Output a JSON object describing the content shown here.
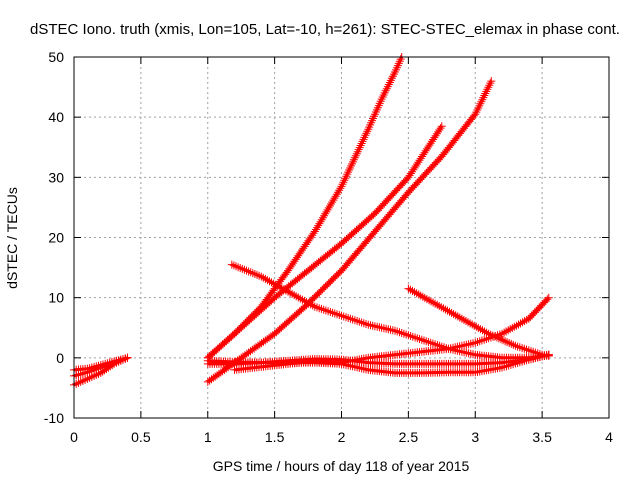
{
  "chart_data": {
    "type": "scatter",
    "title": "dSTEC Iono. truth (xmis, Lon=105, Lat=-10, h=261): STEC-STEC_elemax in phase cont.",
    "xlabel": "GPS time / hours of day 118 of year 2015",
    "ylabel": "dSTEC  / TECUs",
    "xlim": [
      0,
      4
    ],
    "ylim": [
      -10,
      50
    ],
    "xticks": [
      0,
      0.5,
      1,
      1.5,
      2,
      2.5,
      3,
      3.5,
      4
    ],
    "xtick_labels": [
      "0",
      "0.5",
      "1",
      "1.5",
      "2",
      "2.5",
      "3",
      "3.5",
      "4"
    ],
    "yticks": [
      -10,
      0,
      10,
      20,
      30,
      40,
      50
    ],
    "ytick_labels": [
      "-10",
      "0",
      "10",
      "20",
      "30",
      "40",
      "50"
    ],
    "grid": true,
    "legend": "none",
    "marker": "plus",
    "color": "#ff0000",
    "series": [
      {
        "x": [
          0.0,
          0.1,
          0.2,
          0.3,
          0.4
        ],
        "y": [
          -4.5,
          -3.5,
          -2.5,
          -1.0,
          0.0
        ]
      },
      {
        "x": [
          0.0,
          0.1,
          0.2,
          0.3,
          0.4
        ],
        "y": [
          -2.0,
          -1.8,
          -1.2,
          -0.6,
          0.0
        ]
      },
      {
        "x": [
          0.0,
          0.1,
          0.2,
          0.3,
          0.4
        ],
        "y": [
          -3.0,
          -2.4,
          -1.6,
          -0.8,
          0.0
        ]
      },
      {
        "x": [
          1.0,
          1.2,
          1.4,
          1.6,
          1.8,
          2.0,
          2.2,
          2.3,
          2.4,
          2.45
        ],
        "y": [
          0.0,
          4.0,
          8.5,
          14.5,
          21.0,
          28.5,
          38.0,
          43.0,
          47.5,
          50.0
        ]
      },
      {
        "x": [
          1.0,
          1.25,
          1.5,
          1.75,
          2.0,
          2.25,
          2.5,
          2.75
        ],
        "y": [
          0.0,
          5.0,
          10.0,
          14.5,
          19.0,
          24.0,
          30.0,
          38.5
        ]
      },
      {
        "x": [
          1.0,
          1.25,
          1.5,
          1.75,
          2.0,
          2.25,
          2.5,
          2.75,
          3.0,
          3.12
        ],
        "y": [
          -4.0,
          0.0,
          4.0,
          9.0,
          14.5,
          21.0,
          27.5,
          33.5,
          40.5,
          46.0
        ]
      },
      {
        "x": [
          1.0,
          1.2,
          1.4,
          1.6,
          1.8,
          2.0,
          2.2,
          2.4,
          2.6,
          2.8,
          3.0,
          3.2,
          3.4,
          3.55
        ],
        "y": [
          -1.0,
          -1.0,
          -0.8,
          -0.5,
          -0.2,
          -0.3,
          -0.8,
          -1.0,
          -1.0,
          -1.0,
          -1.0,
          -0.8,
          -0.3,
          0.5
        ]
      },
      {
        "x": [
          1.2,
          1.4,
          1.6,
          1.8,
          2.0,
          2.2,
          2.4,
          2.6,
          2.8,
          3.0,
          3.2,
          3.4,
          3.55
        ],
        "y": [
          -2.0,
          -1.5,
          -1.0,
          -0.6,
          -0.8,
          0.0,
          0.5,
          1.0,
          1.5,
          2.5,
          4.0,
          6.5,
          10.0
        ]
      },
      {
        "x": [
          1.0,
          1.2,
          1.4,
          1.6,
          1.8,
          2.0,
          2.2,
          2.4,
          2.6,
          2.8,
          3.0,
          3.2,
          3.4,
          3.55
        ],
        "y": [
          -0.5,
          -0.7,
          -0.8,
          -0.8,
          -0.8,
          -1.0,
          -2.0,
          -2.5,
          -2.5,
          -2.4,
          -2.4,
          -1.6,
          -0.3,
          0.5
        ]
      },
      {
        "x": [
          1.18,
          1.4,
          1.6,
          1.8,
          2.0,
          2.2,
          2.4,
          2.6,
          2.8,
          3.0,
          3.2,
          3.4,
          3.55
        ],
        "y": [
          15.5,
          13.5,
          11.0,
          8.5,
          7.0,
          5.5,
          4.5,
          3.0,
          1.5,
          0.5,
          0.0,
          0.0,
          0.5
        ]
      },
      {
        "x": [
          2.5,
          2.7,
          2.9,
          3.1,
          3.3,
          3.5,
          3.55
        ],
        "y": [
          11.5,
          9.0,
          6.5,
          4.0,
          2.0,
          0.5,
          0.3
        ]
      }
    ]
  }
}
